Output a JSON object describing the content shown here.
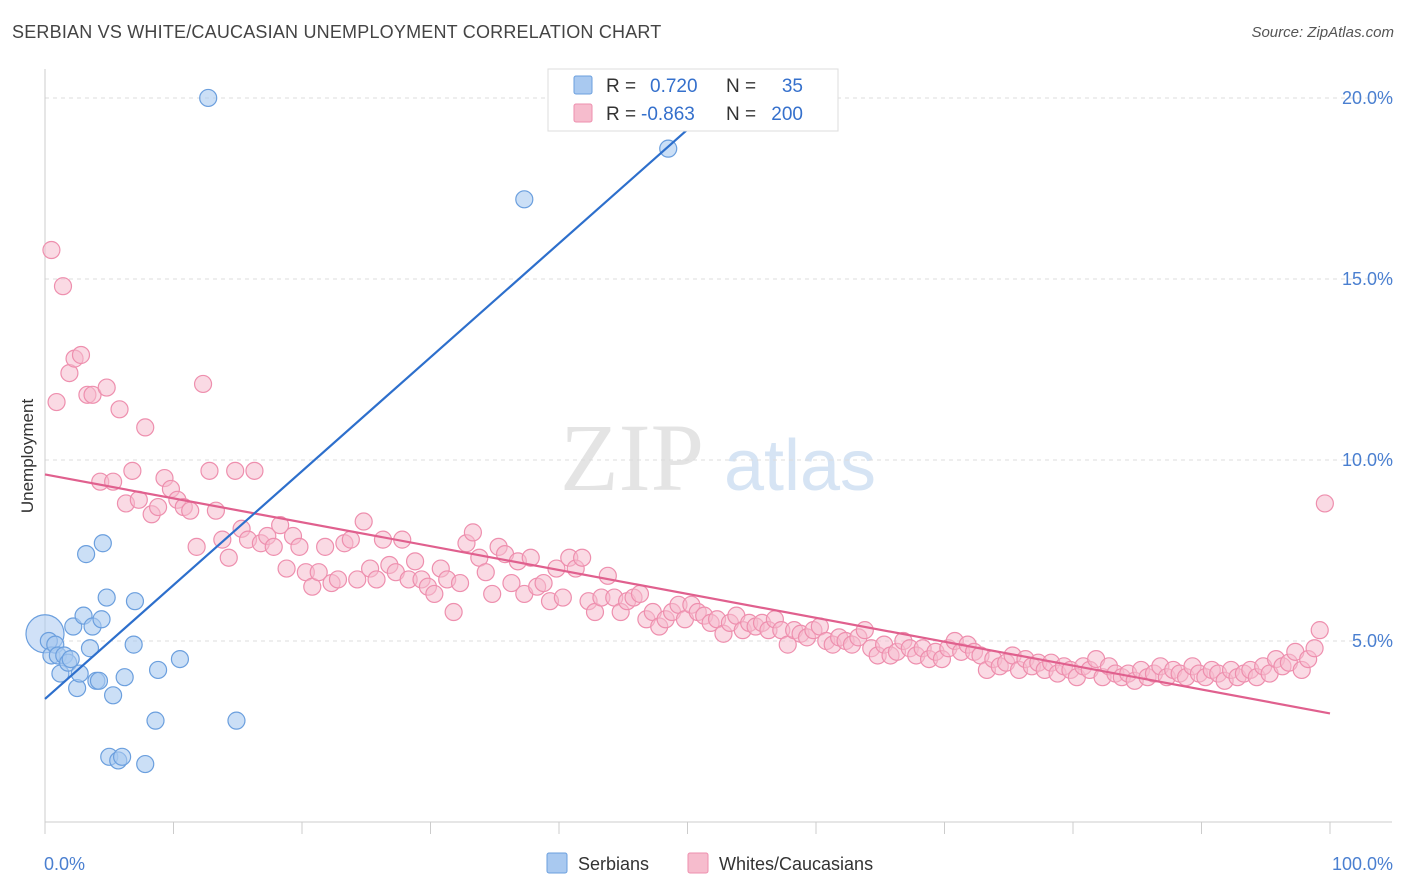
{
  "header": {
    "title": "SERBIAN VS WHITE/CAUCASIAN UNEMPLOYMENT CORRELATION CHART",
    "source": "Source: ZipAtlas.com"
  },
  "watermark": {
    "zip": "ZIP",
    "atlas": "atlas"
  },
  "legend_top": {
    "rows": [
      {
        "r_label": "R =",
        "r_value": "0.720",
        "n_label": "N =",
        "n_value": "35"
      },
      {
        "r_label": "R =",
        "r_value": "-0.863",
        "n_label": "N =",
        "n_value": "200"
      }
    ]
  },
  "legend_bottom": {
    "items": [
      "Serbians",
      "Whites/Caucasians"
    ]
  },
  "chart_data": {
    "type": "scatter",
    "title": "SERBIAN VS WHITE/CAUCASIAN UNEMPLOYMENT CORRELATION CHART",
    "xlabel": "",
    "ylabel": "Unemployment",
    "xlim": [
      0,
      100
    ],
    "ylim": [
      0,
      20.8
    ],
    "x_tick_labels": [
      "0.0%",
      "100.0%"
    ],
    "y_ticks": [
      5,
      10,
      15,
      20
    ],
    "y_tick_labels": [
      "5.0%",
      "10.0%",
      "15.0%",
      "20.0%"
    ],
    "grid": true,
    "legend_position": "bottom",
    "colors": {
      "serbians_fill": "#a9c9f0",
      "serbians_stroke": "#6b9fde",
      "serbians_line": "#2d6fcc",
      "whites_fill": "#f6bccd",
      "whites_stroke": "#ee8fae",
      "whites_line": "#e0608e",
      "tick_label": "#4a7fd0",
      "grid": "#dddddd",
      "axis": "#cccccc"
    },
    "series": [
      {
        "name": "Serbians",
        "points": [
          [
            0.3,
            5.0
          ],
          [
            0.5,
            4.6
          ],
          [
            0.8,
            4.9
          ],
          [
            1.0,
            4.6
          ],
          [
            1.2,
            4.1
          ],
          [
            1.5,
            4.6
          ],
          [
            1.8,
            4.4
          ],
          [
            2.0,
            4.5
          ],
          [
            2.2,
            5.4
          ],
          [
            2.5,
            3.7
          ],
          [
            2.7,
            4.1
          ],
          [
            3.0,
            5.7
          ],
          [
            3.2,
            7.4
          ],
          [
            3.5,
            4.8
          ],
          [
            3.7,
            5.4
          ],
          [
            4.0,
            3.9
          ],
          [
            4.2,
            3.9
          ],
          [
            4.4,
            5.6
          ],
          [
            4.5,
            7.7
          ],
          [
            4.8,
            6.2
          ],
          [
            5.0,
            1.8
          ],
          [
            5.3,
            3.5
          ],
          [
            5.7,
            1.7
          ],
          [
            6.0,
            1.8
          ],
          [
            6.2,
            4.0
          ],
          [
            7.0,
            6.1
          ],
          [
            6.9,
            4.9
          ],
          [
            7.8,
            1.6
          ],
          [
            8.6,
            2.8
          ],
          [
            8.8,
            4.2
          ],
          [
            10.5,
            4.5
          ],
          [
            12.7,
            20.0
          ],
          [
            14.9,
            2.8
          ],
          [
            37.3,
            17.2
          ],
          [
            48.5,
            18.6
          ]
        ],
        "trend": {
          "x": [
            0,
            51.5
          ],
          "y": [
            3.4,
            19.6
          ]
        },
        "big_point": [
          0.0,
          5.2
        ]
      },
      {
        "name": "Whites/Caucasians",
        "points": [
          [
            0.5,
            15.8
          ],
          [
            0.9,
            11.6
          ],
          [
            1.4,
            14.8
          ],
          [
            1.9,
            12.4
          ],
          [
            2.3,
            12.8
          ],
          [
            2.8,
            12.9
          ],
          [
            3.3,
            11.8
          ],
          [
            3.7,
            11.8
          ],
          [
            4.3,
            9.4
          ],
          [
            4.8,
            12.0
          ],
          [
            5.3,
            9.4
          ],
          [
            5.8,
            11.4
          ],
          [
            6.3,
            8.8
          ],
          [
            6.8,
            9.7
          ],
          [
            7.3,
            8.9
          ],
          [
            7.8,
            10.9
          ],
          [
            8.3,
            8.5
          ],
          [
            8.8,
            8.7
          ],
          [
            9.3,
            9.5
          ],
          [
            9.8,
            9.2
          ],
          [
            10.3,
            8.9
          ],
          [
            10.8,
            8.7
          ],
          [
            11.3,
            8.6
          ],
          [
            11.8,
            7.6
          ],
          [
            12.3,
            12.1
          ],
          [
            12.8,
            9.7
          ],
          [
            13.3,
            8.6
          ],
          [
            13.8,
            7.8
          ],
          [
            14.3,
            7.3
          ],
          [
            14.8,
            9.7
          ],
          [
            15.3,
            8.1
          ],
          [
            15.8,
            7.8
          ],
          [
            16.3,
            9.7
          ],
          [
            16.8,
            7.7
          ],
          [
            17.3,
            7.9
          ],
          [
            17.8,
            7.6
          ],
          [
            18.3,
            8.2
          ],
          [
            18.8,
            7.0
          ],
          [
            19.3,
            7.9
          ],
          [
            19.8,
            7.6
          ],
          [
            20.3,
            6.9
          ],
          [
            20.8,
            6.5
          ],
          [
            21.3,
            6.9
          ],
          [
            21.8,
            7.6
          ],
          [
            22.3,
            6.6
          ],
          [
            22.8,
            6.7
          ],
          [
            23.3,
            7.7
          ],
          [
            23.8,
            7.8
          ],
          [
            24.3,
            6.7
          ],
          [
            24.8,
            8.3
          ],
          [
            25.3,
            7.0
          ],
          [
            25.8,
            6.7
          ],
          [
            26.3,
            7.8
          ],
          [
            26.8,
            7.1
          ],
          [
            27.3,
            6.9
          ],
          [
            27.8,
            7.8
          ],
          [
            28.3,
            6.7
          ],
          [
            28.8,
            7.2
          ],
          [
            29.3,
            6.7
          ],
          [
            29.8,
            6.5
          ],
          [
            30.3,
            6.3
          ],
          [
            30.8,
            7.0
          ],
          [
            31.3,
            6.7
          ],
          [
            31.8,
            5.8
          ],
          [
            32.3,
            6.6
          ],
          [
            32.8,
            7.7
          ],
          [
            33.3,
            8.0
          ],
          [
            33.8,
            7.3
          ],
          [
            34.3,
            6.9
          ],
          [
            34.8,
            6.3
          ],
          [
            35.3,
            7.6
          ],
          [
            35.8,
            7.4
          ],
          [
            36.3,
            6.6
          ],
          [
            36.8,
            7.2
          ],
          [
            37.3,
            6.3
          ],
          [
            37.8,
            7.3
          ],
          [
            38.3,
            6.5
          ],
          [
            38.8,
            6.6
          ],
          [
            39.3,
            6.1
          ],
          [
            39.8,
            7.0
          ],
          [
            40.3,
            6.2
          ],
          [
            40.8,
            7.3
          ],
          [
            41.3,
            7.0
          ],
          [
            41.8,
            7.3
          ],
          [
            42.3,
            6.1
          ],
          [
            42.8,
            5.8
          ],
          [
            43.3,
            6.2
          ],
          [
            43.8,
            6.8
          ],
          [
            44.3,
            6.2
          ],
          [
            44.8,
            5.8
          ],
          [
            45.3,
            6.1
          ],
          [
            45.8,
            6.2
          ],
          [
            46.3,
            6.3
          ],
          [
            46.8,
            5.6
          ],
          [
            47.3,
            5.8
          ],
          [
            47.8,
            5.4
          ],
          [
            48.3,
            5.6
          ],
          [
            48.8,
            5.8
          ],
          [
            49.3,
            6.0
          ],
          [
            49.8,
            5.6
          ],
          [
            50.3,
            6.0
          ],
          [
            50.8,
            5.8
          ],
          [
            51.3,
            5.7
          ],
          [
            51.8,
            5.5
          ],
          [
            52.3,
            5.6
          ],
          [
            52.8,
            5.2
          ],
          [
            53.3,
            5.5
          ],
          [
            53.8,
            5.7
          ],
          [
            54.3,
            5.3
          ],
          [
            54.8,
            5.5
          ],
          [
            55.3,
            5.4
          ],
          [
            55.8,
            5.5
          ],
          [
            56.3,
            5.3
          ],
          [
            56.8,
            5.6
          ],
          [
            57.3,
            5.3
          ],
          [
            57.8,
            4.9
          ],
          [
            58.3,
            5.3
          ],
          [
            58.8,
            5.2
          ],
          [
            59.3,
            5.1
          ],
          [
            59.8,
            5.3
          ],
          [
            60.3,
            5.4
          ],
          [
            60.8,
            5.0
          ],
          [
            61.3,
            4.9
          ],
          [
            61.8,
            5.1
          ],
          [
            62.3,
            5.0
          ],
          [
            62.8,
            4.9
          ],
          [
            63.3,
            5.1
          ],
          [
            63.8,
            5.3
          ],
          [
            64.3,
            4.8
          ],
          [
            64.8,
            4.6
          ],
          [
            65.3,
            4.9
          ],
          [
            65.8,
            4.6
          ],
          [
            66.3,
            4.7
          ],
          [
            66.8,
            5.0
          ],
          [
            67.3,
            4.8
          ],
          [
            67.8,
            4.6
          ],
          [
            68.3,
            4.8
          ],
          [
            68.8,
            4.5
          ],
          [
            69.3,
            4.7
          ],
          [
            69.8,
            4.5
          ],
          [
            70.3,
            4.8
          ],
          [
            70.8,
            5.0
          ],
          [
            71.3,
            4.7
          ],
          [
            71.8,
            4.9
          ],
          [
            72.3,
            4.7
          ],
          [
            72.8,
            4.6
          ],
          [
            73.3,
            4.2
          ],
          [
            73.8,
            4.5
          ],
          [
            74.3,
            4.3
          ],
          [
            74.8,
            4.4
          ],
          [
            75.3,
            4.6
          ],
          [
            75.8,
            4.2
          ],
          [
            76.3,
            4.5
          ],
          [
            76.8,
            4.3
          ],
          [
            77.3,
            4.4
          ],
          [
            77.8,
            4.2
          ],
          [
            78.3,
            4.4
          ],
          [
            78.8,
            4.1
          ],
          [
            79.3,
            4.3
          ],
          [
            79.8,
            4.2
          ],
          [
            80.3,
            4.0
          ],
          [
            80.8,
            4.3
          ],
          [
            81.3,
            4.2
          ],
          [
            81.8,
            4.5
          ],
          [
            82.3,
            4.0
          ],
          [
            82.8,
            4.3
          ],
          [
            83.3,
            4.1
          ],
          [
            83.8,
            4.0
          ],
          [
            84.3,
            4.1
          ],
          [
            84.8,
            3.9
          ],
          [
            85.3,
            4.2
          ],
          [
            85.8,
            4.0
          ],
          [
            86.3,
            4.1
          ],
          [
            86.8,
            4.3
          ],
          [
            87.3,
            4.0
          ],
          [
            87.8,
            4.2
          ],
          [
            88.3,
            4.1
          ],
          [
            88.8,
            4.0
          ],
          [
            89.3,
            4.3
          ],
          [
            89.8,
            4.1
          ],
          [
            90.3,
            4.0
          ],
          [
            90.8,
            4.2
          ],
          [
            91.3,
            4.1
          ],
          [
            91.8,
            3.9
          ],
          [
            92.3,
            4.2
          ],
          [
            92.8,
            4.0
          ],
          [
            93.3,
            4.1
          ],
          [
            93.8,
            4.2
          ],
          [
            94.3,
            4.0
          ],
          [
            94.8,
            4.3
          ],
          [
            95.3,
            4.1
          ],
          [
            95.8,
            4.5
          ],
          [
            96.3,
            4.3
          ],
          [
            96.8,
            4.4
          ],
          [
            97.3,
            4.7
          ],
          [
            97.8,
            4.2
          ],
          [
            98.3,
            4.5
          ],
          [
            98.8,
            4.8
          ],
          [
            99.2,
            5.3
          ],
          [
            99.6,
            8.8
          ]
        ],
        "trend": {
          "x": [
            0,
            100
          ],
          "y": [
            9.6,
            3.0
          ]
        }
      }
    ]
  }
}
